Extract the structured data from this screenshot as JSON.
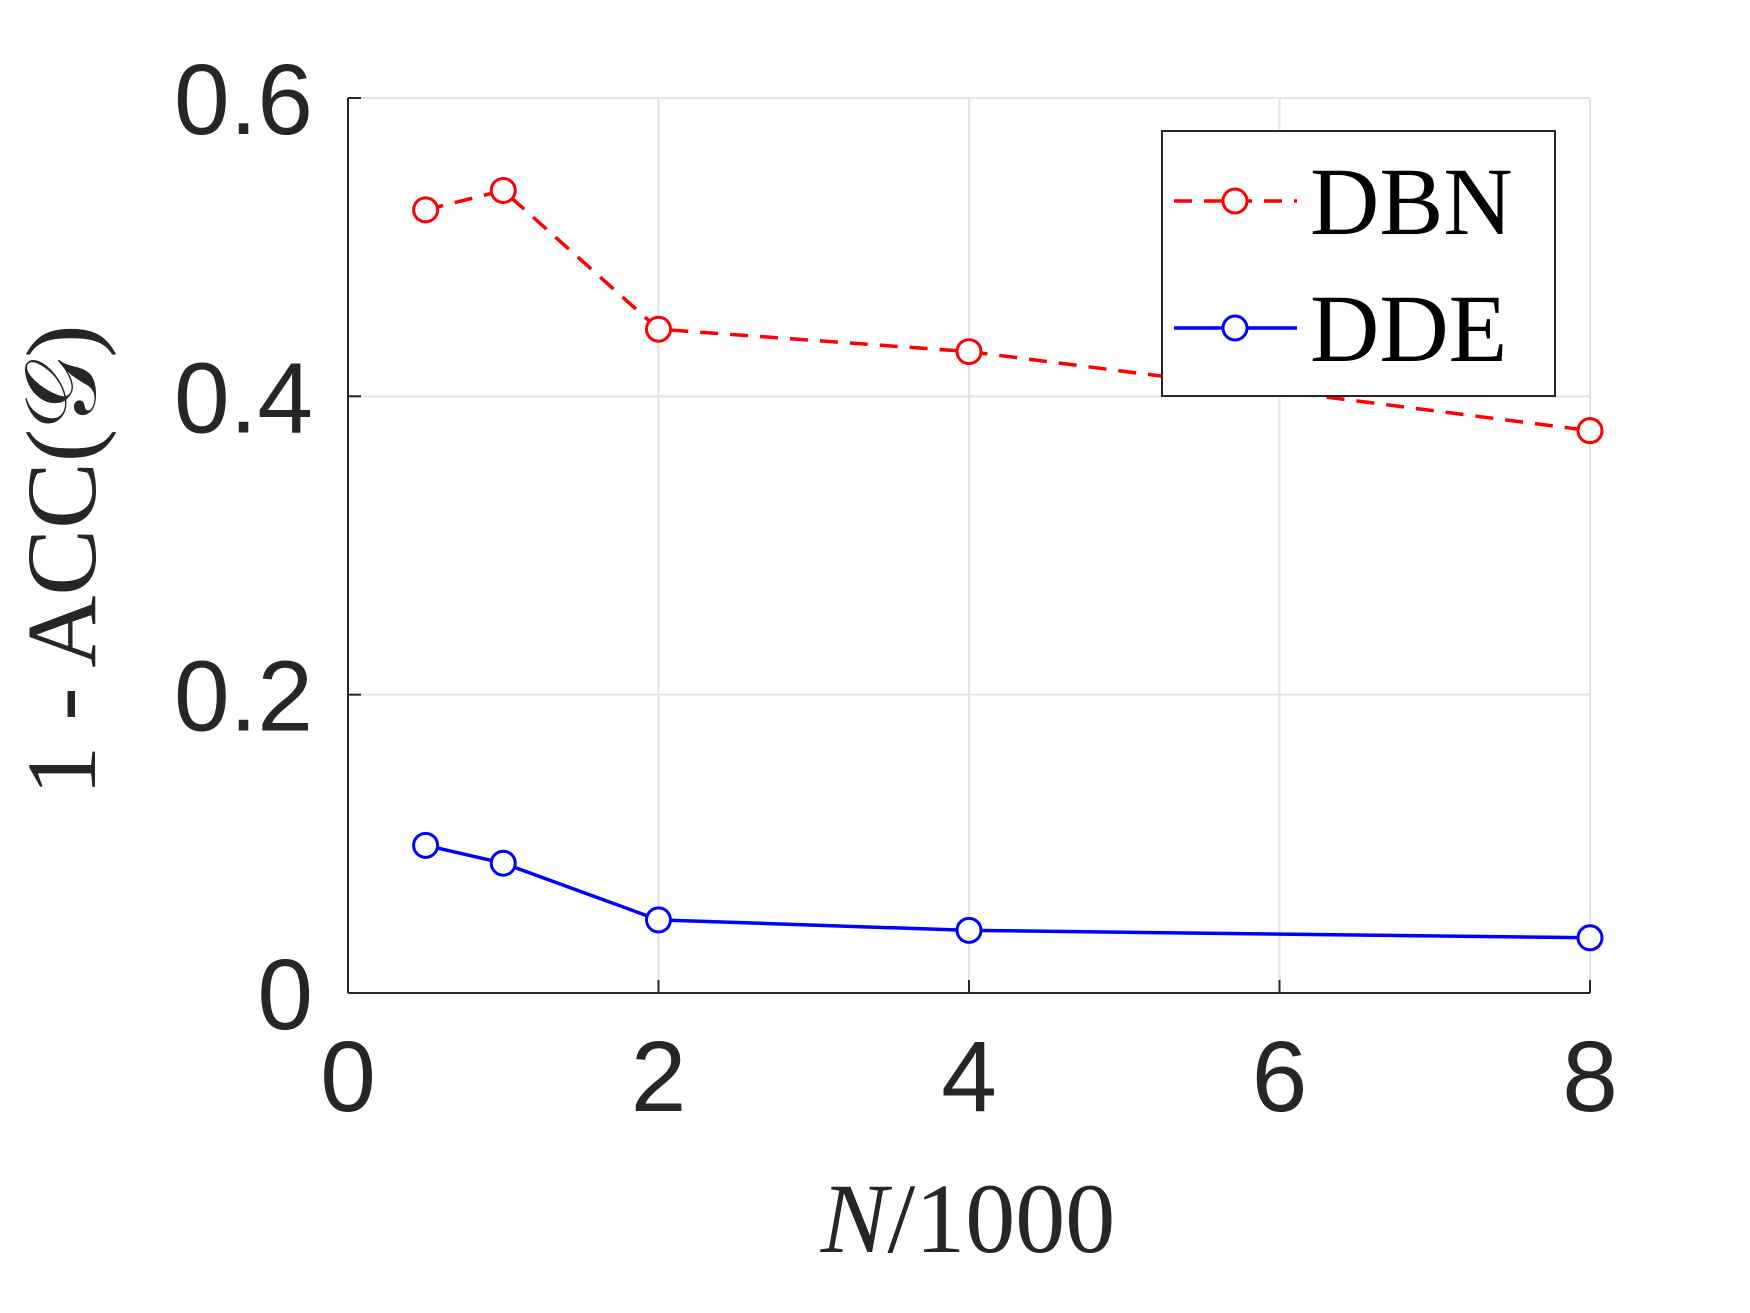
{
  "chart_data": {
    "type": "line",
    "xlabel": "N/1000",
    "ylabel": "1 - ACC(𝒢)",
    "xlim": [
      0,
      8
    ],
    "ylim": [
      0,
      0.6
    ],
    "x_ticks": [
      0,
      2,
      4,
      6,
      8
    ],
    "y_ticks": [
      0,
      0.2,
      0.4,
      0.6
    ],
    "x_tick_labels": [
      "0",
      "2",
      "4",
      "6",
      "8"
    ],
    "y_tick_labels": [
      "0",
      "0.2",
      "0.4",
      "0.6"
    ],
    "grid": true,
    "legend_position": "top-right",
    "series": [
      {
        "name": "DBN",
        "color": "#ff0000",
        "line_style": "dashed",
        "marker": "circle",
        "x": [
          0.5,
          1,
          2,
          4,
          8
        ],
        "y": [
          0.525,
          0.538,
          0.445,
          0.43,
          0.377
        ]
      },
      {
        "name": "DDE",
        "color": "#0000ff",
        "line_style": "solid",
        "marker": "circle",
        "x": [
          0.5,
          1,
          2,
          4,
          8
        ],
        "y": [
          0.099,
          0.087,
          0.049,
          0.042,
          0.037
        ]
      }
    ]
  }
}
